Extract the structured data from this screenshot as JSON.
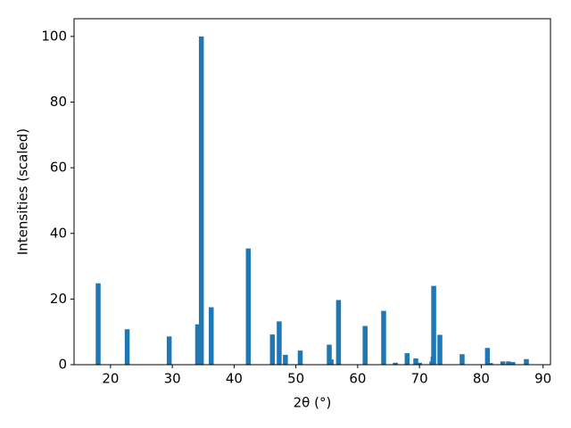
{
  "chart_data": {
    "type": "bar",
    "xlabel": "2θ (°)",
    "ylabel": "Intensities (scaled)",
    "color": "#1f77b4",
    "x": [
      18.0,
      22.7,
      29.5,
      34.1,
      34.7,
      36.3,
      42.3,
      46.2,
      47.3,
      48.3,
      50.7,
      55.4,
      55.7,
      56.9,
      61.2,
      64.2,
      66.1,
      68.0,
      69.4,
      70.0,
      72.0,
      72.2,
      72.3,
      73.3,
      76.9,
      81.0,
      81.5,
      83.5,
      84.4,
      85.1,
      87.3
    ],
    "values": [
      24.8,
      10.8,
      8.6,
      12.3,
      100,
      17.5,
      35.4,
      9.2,
      13.2,
      3.0,
      4.3,
      6.1,
      1.6,
      19.7,
      11.8,
      16.4,
      0.6,
      3.5,
      1.9,
      0.6,
      1.0,
      2.5,
      24.0,
      9.1,
      3.2,
      5.1,
      0.5,
      1.0,
      1.0,
      0.8,
      1.7
    ],
    "xlim": [
      14.1,
      91.2
    ],
    "ylim": [
      0,
      105.4
    ],
    "xticks": [
      20,
      30,
      40,
      50,
      60,
      70,
      80,
      90
    ],
    "yticks": [
      0,
      20,
      40,
      60,
      80,
      100
    ]
  }
}
